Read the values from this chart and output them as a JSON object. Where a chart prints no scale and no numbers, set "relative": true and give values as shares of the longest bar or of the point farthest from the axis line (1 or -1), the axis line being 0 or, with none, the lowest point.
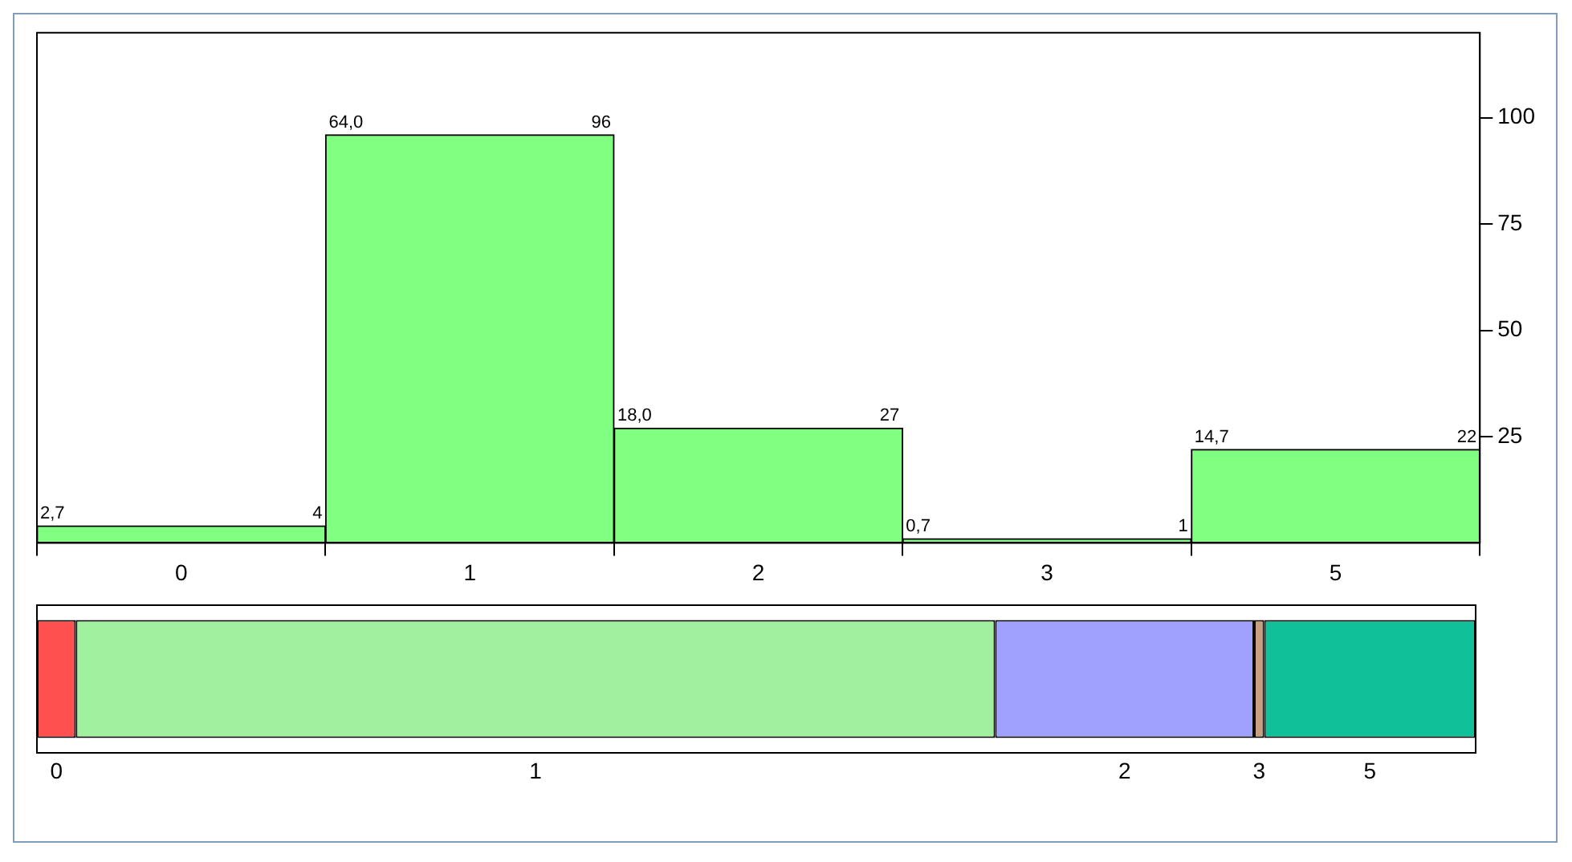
{
  "chart_data": [
    {
      "type": "bar",
      "categories": [
        "0",
        "1",
        "2",
        "3",
        "5"
      ],
      "values": [
        4,
        96,
        27,
        1,
        22
      ],
      "color": "#80ff80",
      "ylim": [
        0,
        120
      ],
      "yticks": [
        25,
        50,
        75,
        100
      ],
      "data_labels": true,
      "annotations": [
        "2,7",
        "64,0",
        "18,0",
        "0,7",
        "14,7"
      ]
    },
    {
      "type": "bar",
      "orientation": "horizontal",
      "stacked": true,
      "relative": true,
      "categories": [
        null
      ],
      "series": [
        {
          "name": "0",
          "color": "#ff5050",
          "values": [
            0.027
          ]
        },
        {
          "name": "1",
          "color": "#a0f0a0",
          "values": [
            0.639
          ]
        },
        {
          "name": "2",
          "color": "#a0a0ff",
          "values": [
            0.18
          ]
        },
        {
          "name": "3",
          "color": "#c8a080",
          "values": [
            0.007
          ]
        },
        {
          "name": "5",
          "color": "#10c098",
          "values": [
            0.147
          ]
        }
      ]
    }
  ]
}
